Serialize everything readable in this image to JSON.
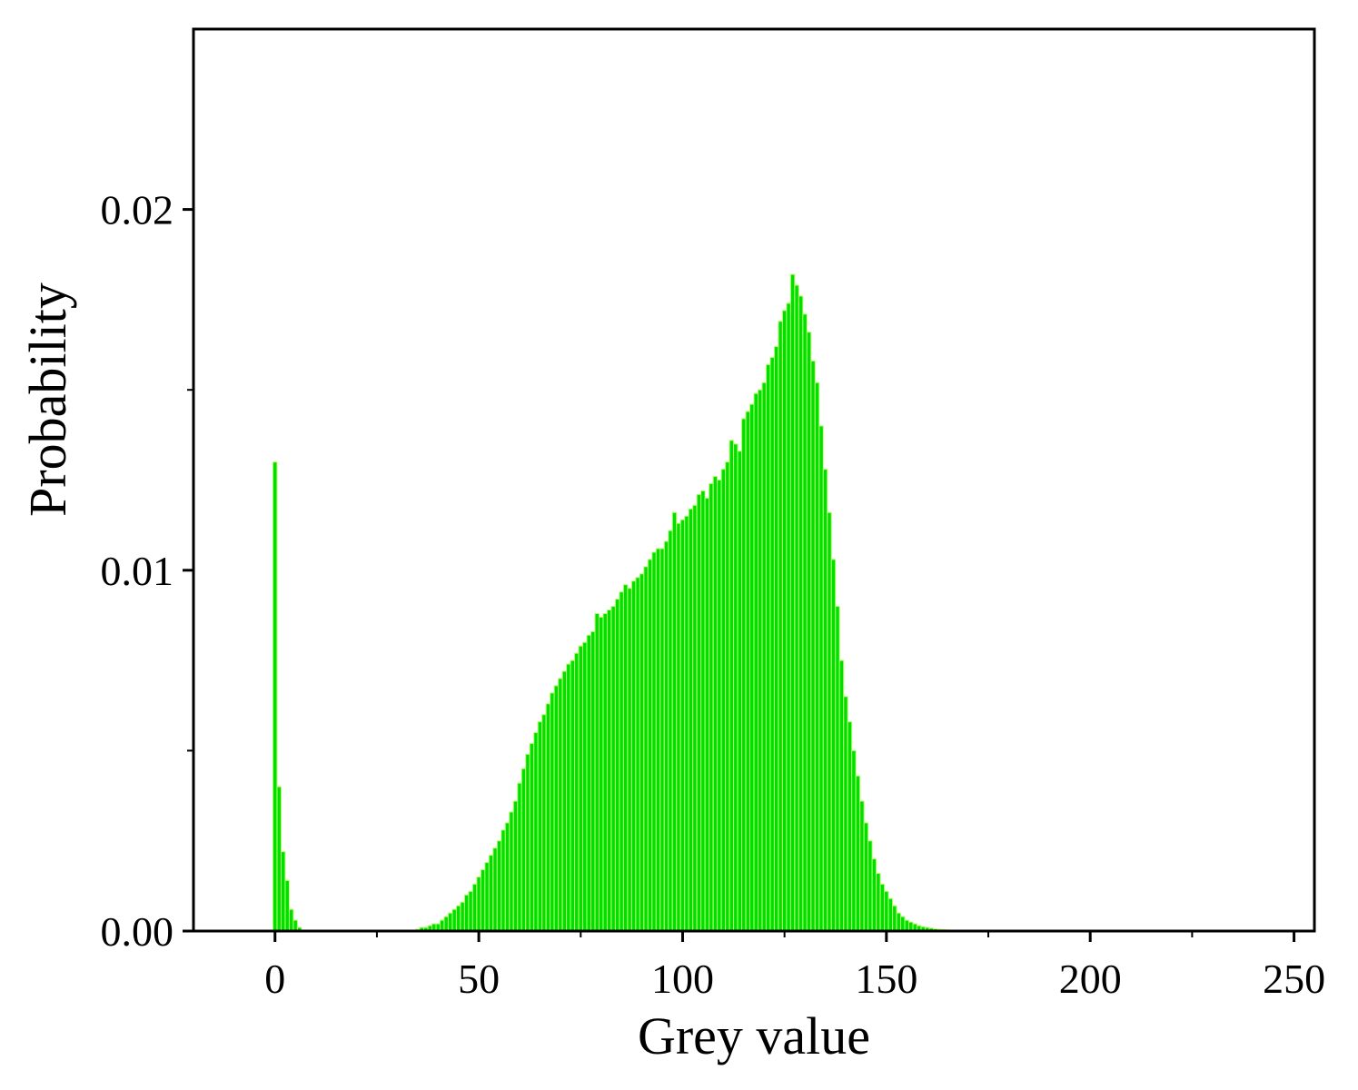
{
  "chart_data": {
    "type": "histogram",
    "xlabel": "Grey value",
    "ylabel": "Probability",
    "color": "#00e000",
    "edge_color": "#b8ff70",
    "xlim": [
      -20,
      255
    ],
    "ylim": [
      0,
      0.025
    ],
    "xticks": [
      0,
      50,
      100,
      150,
      200,
      250
    ],
    "xminor_ticks": [
      25,
      75,
      125,
      175,
      225
    ],
    "yticks": [
      {
        "value": 0,
        "label": "0.00"
      },
      {
        "value": 0.01,
        "label": "0.01"
      },
      {
        "value": 0.02,
        "label": "0.02"
      }
    ],
    "yminor_ticks": [
      0.005,
      0.015
    ],
    "bins": [
      -0.5,
      0.5,
      1.5,
      2.5,
      3.5,
      4.5,
      5.5,
      6.5,
      7.5,
      8.5,
      9.5,
      10.5,
      11.5,
      12.5,
      13.5,
      14.5,
      15.5,
      16.5,
      17.5,
      18.5,
      19.5,
      20.5,
      21.5,
      22.5,
      23.5,
      24.5,
      25.5,
      26.5,
      27.5,
      28.5,
      29.5,
      30.5,
      31.5,
      32.5,
      33.5,
      34.5,
      35.5,
      36.5,
      37.5,
      38.5,
      39.5,
      40.5,
      41.5,
      42.5,
      43.5,
      44.5,
      45.5,
      46.5,
      47.5,
      48.5,
      49.5,
      50.5,
      51.5,
      52.5,
      53.5,
      54.5,
      55.5,
      56.5,
      57.5,
      58.5,
      59.5,
      60.5,
      61.5,
      62.5,
      63.5,
      64.5,
      65.5,
      66.5,
      67.5,
      68.5,
      69.5,
      70.5,
      71.5,
      72.5,
      73.5,
      74.5,
      75.5,
      76.5,
      77.5,
      78.5,
      79.5,
      80.5,
      81.5,
      82.5,
      83.5,
      84.5,
      85.5,
      86.5,
      87.5,
      88.5,
      89.5,
      90.5,
      91.5,
      92.5,
      93.5,
      94.5,
      95.5,
      96.5,
      97.5,
      98.5,
      99.5,
      100.5,
      101.5,
      102.5,
      103.5,
      104.5,
      105.5,
      106.5,
      107.5,
      108.5,
      109.5,
      110.5,
      111.5,
      112.5,
      113.5,
      114.5,
      115.5,
      116.5,
      117.5,
      118.5,
      119.5,
      120.5,
      121.5,
      122.5,
      123.5,
      124.5,
      125.5,
      126.5,
      127.5,
      128.5,
      129.5,
      130.5,
      131.5,
      132.5,
      133.5,
      134.5,
      135.5,
      136.5,
      137.5,
      138.5,
      139.5,
      140.5,
      141.5,
      142.5,
      143.5,
      144.5,
      145.5,
      146.5,
      147.5,
      148.5,
      149.5,
      150.5,
      151.5,
      152.5,
      153.5,
      154.5,
      155.5,
      156.5,
      157.5,
      158.5,
      159.5,
      160.5,
      161.5,
      162.5,
      163.5,
      164.5,
      165.5,
      166.5,
      167.5,
      168.5,
      169.5
    ],
    "values": [
      0.013,
      0.004,
      0.0022,
      0.0014,
      0.0006,
      0.0003,
      0.0001,
      0,
      0,
      0,
      0,
      0,
      0,
      0,
      0,
      0,
      0,
      0,
      0,
      0,
      0,
      0,
      0,
      0,
      0,
      0,
      0,
      0,
      0,
      0,
      0,
      0,
      0,
      0,
      0,
      5e-05,
      0.0001,
      0.0001,
      0.00015,
      0.0002,
      0.0002,
      0.0003,
      0.0004,
      0.0005,
      0.0006,
      0.0007,
      0.0008,
      0.001,
      0.0011,
      0.0013,
      0.0015,
      0.0017,
      0.0019,
      0.0021,
      0.0023,
      0.0025,
      0.0028,
      0.003,
      0.0033,
      0.0036,
      0.0041,
      0.0045,
      0.0049,
      0.0052,
      0.0055,
      0.0058,
      0.006,
      0.0063,
      0.0066,
      0.0068,
      0.007,
      0.0072,
      0.0074,
      0.0075,
      0.0077,
      0.0079,
      0.008,
      0.0082,
      0.0083,
      0.0088,
      0.0087,
      0.0088,
      0.0089,
      0.009,
      0.0092,
      0.0094,
      0.0096,
      0.0095,
      0.0097,
      0.0098,
      0.0099,
      0.0101,
      0.0103,
      0.0105,
      0.0106,
      0.0106,
      0.0108,
      0.0111,
      0.0116,
      0.0113,
      0.0114,
      0.0115,
      0.0117,
      0.0118,
      0.0121,
      0.0122,
      0.012,
      0.0124,
      0.0126,
      0.0125,
      0.0128,
      0.013,
      0.0136,
      0.0135,
      0.0133,
      0.0142,
      0.0144,
      0.0146,
      0.0149,
      0.015,
      0.0152,
      0.0157,
      0.0159,
      0.0162,
      0.0169,
      0.0172,
      0.0174,
      0.0182,
      0.0179,
      0.0176,
      0.0171,
      0.0166,
      0.0158,
      0.0152,
      0.014,
      0.0128,
      0.0116,
      0.0103,
      0.009,
      0.0075,
      0.0065,
      0.0058,
      0.005,
      0.0043,
      0.0036,
      0.003,
      0.0025,
      0.002,
      0.0016,
      0.0013,
      0.0011,
      0.0009,
      0.0007,
      0.0005,
      0.0004,
      0.0003,
      0.00025,
      0.0002,
      0.00015,
      0.00012,
      0.0001,
      8e-05,
      6e-05,
      5e-05,
      4e-05,
      3e-05,
      2e-05,
      1e-05,
      0,
      0
    ]
  }
}
